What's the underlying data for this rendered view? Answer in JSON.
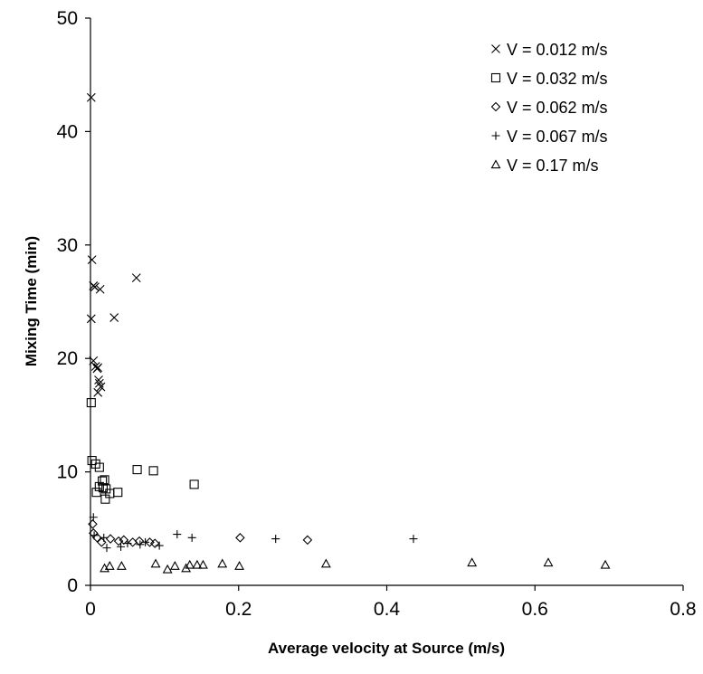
{
  "chart_data": {
    "type": "scatter",
    "xlabel": "Average velocity at Source (m/s)",
    "ylabel": "Mixing Time (min)",
    "xlim": [
      0,
      0.8
    ],
    "ylim": [
      0,
      50
    ],
    "x_ticks": [
      "0",
      "0.2",
      "0.4",
      "0.6",
      "0.8"
    ],
    "y_ticks": [
      "0",
      "10",
      "20",
      "30",
      "40",
      "50"
    ],
    "grid": false,
    "legend_position": "top-right",
    "series": [
      {
        "name": "V = 0.012 m/s",
        "marker": "x",
        "points": [
          [
            0.001,
            43.0
          ],
          [
            0.002,
            28.7
          ],
          [
            0.004,
            26.4
          ],
          [
            0.006,
            26.3
          ],
          [
            0.013,
            26.1
          ],
          [
            0.062,
            27.1
          ],
          [
            0.001,
            23.5
          ],
          [
            0.032,
            23.6
          ],
          [
            0.004,
            19.8
          ],
          [
            0.007,
            19.3
          ],
          [
            0.009,
            19.1
          ],
          [
            0.01,
            19.2
          ],
          [
            0.011,
            18.1
          ],
          [
            0.012,
            17.8
          ],
          [
            0.014,
            17.5
          ],
          [
            0.01,
            17.0
          ]
        ]
      },
      {
        "name": "V = 0.032 m/s",
        "marker": "square",
        "points": [
          [
            0.001,
            16.1
          ],
          [
            0.002,
            11.0
          ],
          [
            0.007,
            10.7
          ],
          [
            0.012,
            10.4
          ],
          [
            0.063,
            10.2
          ],
          [
            0.085,
            10.1
          ],
          [
            0.016,
            9.2
          ],
          [
            0.019,
            9.3
          ],
          [
            0.14,
            8.9
          ],
          [
            0.012,
            8.7
          ],
          [
            0.017,
            8.6
          ],
          [
            0.021,
            8.5
          ],
          [
            0.008,
            8.2
          ],
          [
            0.037,
            8.2
          ],
          [
            0.026,
            8.1
          ],
          [
            0.02,
            7.6
          ]
        ]
      },
      {
        "name": "V = 0.062 m/s",
        "marker": "diamond",
        "points": [
          [
            0.003,
            5.4
          ],
          [
            0.004,
            4.6
          ],
          [
            0.009,
            4.2
          ],
          [
            0.015,
            3.8
          ],
          [
            0.027,
            4.1
          ],
          [
            0.038,
            3.9
          ],
          [
            0.045,
            4.0
          ],
          [
            0.057,
            3.8
          ],
          [
            0.066,
            3.9
          ],
          [
            0.08,
            3.8
          ],
          [
            0.087,
            3.7
          ],
          [
            0.202,
            4.2
          ],
          [
            0.293,
            4.0
          ]
        ]
      },
      {
        "name": "V = 0.067 m/s",
        "marker": "plus",
        "points": [
          [
            0.004,
            6.0
          ],
          [
            0.005,
            4.4
          ],
          [
            0.018,
            4.2
          ],
          [
            0.022,
            3.3
          ],
          [
            0.041,
            3.4
          ],
          [
            0.05,
            3.7
          ],
          [
            0.067,
            3.6
          ],
          [
            0.074,
            3.8
          ],
          [
            0.093,
            3.5
          ],
          [
            0.117,
            4.5
          ],
          [
            0.137,
            4.2
          ],
          [
            0.25,
            4.1
          ],
          [
            0.436,
            4.1
          ]
        ]
      },
      {
        "name": "V = 0.17 m/s",
        "marker": "triangle",
        "points": [
          [
            0.019,
            1.5
          ],
          [
            0.026,
            1.7
          ],
          [
            0.042,
            1.7
          ],
          [
            0.088,
            1.9
          ],
          [
            0.104,
            1.4
          ],
          [
            0.114,
            1.7
          ],
          [
            0.129,
            1.5
          ],
          [
            0.134,
            1.8
          ],
          [
            0.144,
            1.8
          ],
          [
            0.152,
            1.8
          ],
          [
            0.178,
            1.9
          ],
          [
            0.201,
            1.7
          ],
          [
            0.318,
            1.9
          ],
          [
            0.515,
            2.0
          ],
          [
            0.618,
            2.0
          ],
          [
            0.695,
            1.8
          ]
        ]
      }
    ]
  }
}
